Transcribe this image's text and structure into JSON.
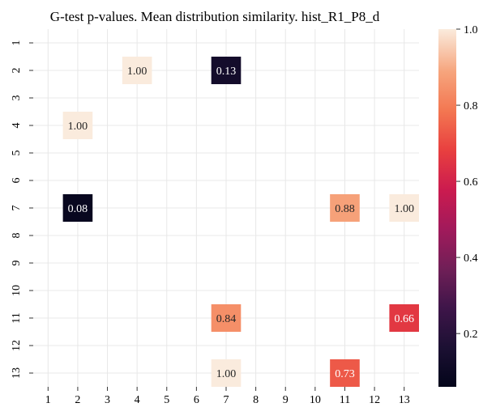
{
  "chart_data": {
    "type": "heatmap",
    "title": "G-test p-values. Mean distribution similarity. hist_R1_P8_d",
    "xlabel": "",
    "ylabel": "",
    "x_categories": [
      "1",
      "2",
      "3",
      "4",
      "5",
      "6",
      "7",
      "8",
      "9",
      "10",
      "11",
      "12",
      "13"
    ],
    "y_categories": [
      "1",
      "2",
      "3",
      "4",
      "5",
      "6",
      "7",
      "8",
      "9",
      "10",
      "11",
      "12",
      "13"
    ],
    "cells": [
      {
        "row": "2",
        "col": "4",
        "value": 1.0,
        "label": "1.00"
      },
      {
        "row": "2",
        "col": "7",
        "value": 0.13,
        "label": "0.13"
      },
      {
        "row": "4",
        "col": "2",
        "value": 1.0,
        "label": "1.00"
      },
      {
        "row": "7",
        "col": "2",
        "value": 0.08,
        "label": "0.08"
      },
      {
        "row": "7",
        "col": "11",
        "value": 0.88,
        "label": "0.88"
      },
      {
        "row": "7",
        "col": "13",
        "value": 1.0,
        "label": "1.00"
      },
      {
        "row": "11",
        "col": "7",
        "value": 0.84,
        "label": "0.84"
      },
      {
        "row": "11",
        "col": "13",
        "value": 0.66,
        "label": "0.66"
      },
      {
        "row": "13",
        "col": "7",
        "value": 1.0,
        "label": "1.00"
      },
      {
        "row": "13",
        "col": "11",
        "value": 0.73,
        "label": "0.73"
      }
    ],
    "colorbar": {
      "colormap": "rocket",
      "range": [
        0.06,
        1.0
      ],
      "ticks": [
        0.2,
        0.4,
        0.6,
        0.8,
        1.0
      ],
      "tick_labels": [
        "0.2",
        "0.4",
        "0.6",
        "0.8",
        "1.0"
      ]
    },
    "grid": true
  }
}
